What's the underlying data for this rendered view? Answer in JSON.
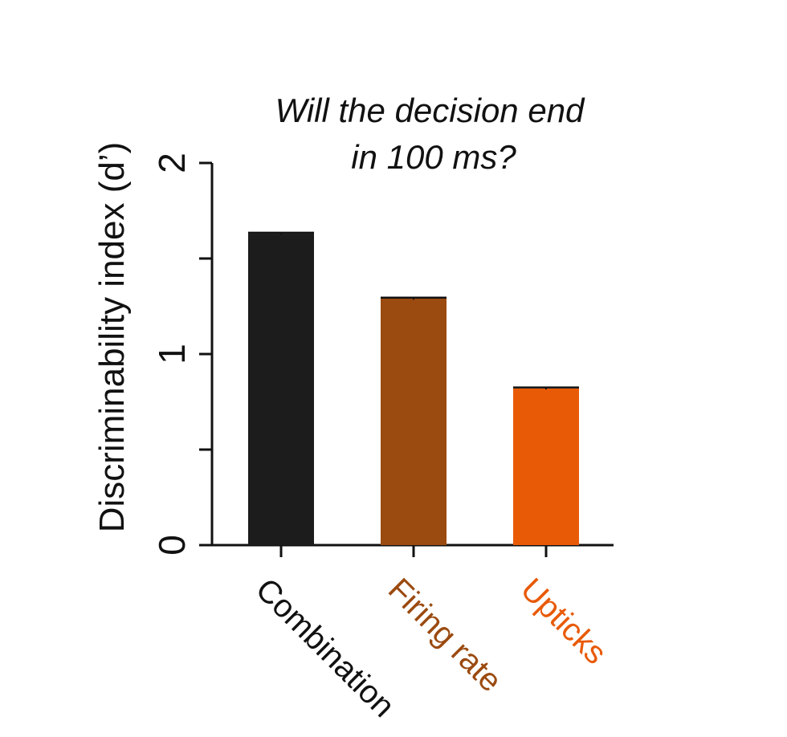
{
  "chart_data": {
    "type": "bar",
    "title_lines": [
      "Will the decision end",
      "in 100 ms?"
    ],
    "ylabel": "Discriminability index (d’)",
    "xlabel": "",
    "ylim": [
      0,
      2
    ],
    "yticks_major": [
      0,
      1,
      2
    ],
    "yticks_major_labels": [
      "0",
      "1",
      "2"
    ],
    "yticks_minor": [
      0.5,
      1.5
    ],
    "categories": [
      "Combination",
      "Firing rate",
      "Upticks"
    ],
    "values": [
      1.63,
      1.29,
      0.82
    ],
    "errors": [
      0.005,
      0.005,
      0.005
    ],
    "colors": [
      "#1c1c1c",
      "#9b4a10",
      "#e85a06"
    ],
    "label_colors": [
      "#111111",
      "#9b4a10",
      "#e85a06"
    ],
    "grid": false,
    "legend": "none"
  }
}
